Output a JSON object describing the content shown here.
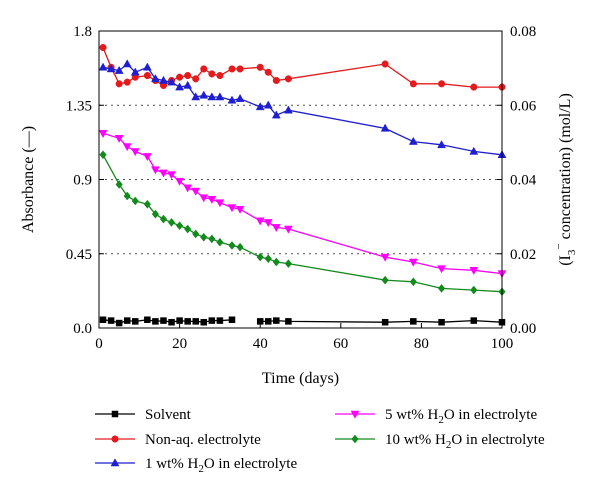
{
  "chart_data": {
    "type": "line",
    "xlabel": "Time (days)",
    "ylabel": "Absorbance (—)",
    "ylabel_right_parts": [
      "(I",
      "3",
      "−",
      " concentration) (mol/L)"
    ],
    "xlim": [
      0,
      100
    ],
    "ylim": [
      0,
      1.8
    ],
    "ylim_right": [
      0,
      0.08
    ],
    "x_ticks": [
      "0",
      "20",
      "40",
      "60",
      "80",
      "100"
    ],
    "y_ticks": [
      "0.0",
      "0.45",
      "0.9",
      "1.35",
      "1.8"
    ],
    "y_ticks_right": [
      "0.00",
      "0.02",
      "0.04",
      "0.06",
      "0.08"
    ],
    "grid": "horizontal dotted",
    "series": [
      {
        "name": "Solvent",
        "legend_parts": [
          "Solvent"
        ],
        "color": "#000000",
        "marker": "square",
        "segments": [
          [
            [
              1,
              0.05
            ],
            [
              3,
              0.045
            ],
            [
              5,
              0.03
            ],
            [
              7,
              0.045
            ],
            [
              9,
              0.04
            ],
            [
              12,
              0.05
            ],
            [
              14,
              0.04
            ],
            [
              16,
              0.045
            ],
            [
              18,
              0.035
            ],
            [
              20,
              0.045
            ],
            [
              22,
              0.04
            ],
            [
              24,
              0.04
            ],
            [
              26,
              0.035
            ],
            [
              28,
              0.045
            ],
            [
              30,
              0.045
            ],
            [
              33,
              0.05
            ]
          ],
          [
            [
              40,
              0.04
            ],
            [
              42,
              0.04
            ],
            [
              44,
              0.045
            ],
            [
              47,
              0.04
            ],
            [
              71,
              0.035
            ],
            [
              78,
              0.04
            ],
            [
              85,
              0.035
            ],
            [
              93,
              0.045
            ],
            [
              100,
              0.035
            ]
          ]
        ]
      },
      {
        "name": "Non-aq. electrolyte",
        "legend_parts": [
          "Non-aq. electrolyte"
        ],
        "color": "#e41a1c",
        "marker": "circle",
        "segments": [
          [
            [
              1,
              1.7
            ],
            [
              3,
              1.58
            ],
            [
              5,
              1.48
            ],
            [
              7,
              1.49
            ],
            [
              9,
              1.52
            ],
            [
              12,
              1.53
            ],
            [
              14,
              1.5
            ],
            [
              16,
              1.47
            ],
            [
              18,
              1.5
            ],
            [
              20,
              1.52
            ],
            [
              22,
              1.53
            ],
            [
              24,
              1.51
            ],
            [
              26,
              1.57
            ],
            [
              28,
              1.54
            ],
            [
              30,
              1.53
            ],
            [
              33,
              1.57
            ],
            [
              35,
              1.57
            ],
            [
              40,
              1.58
            ],
            [
              42,
              1.55
            ],
            [
              44,
              1.5
            ],
            [
              47,
              1.51
            ],
            [
              71,
              1.6
            ],
            [
              78,
              1.48
            ],
            [
              85,
              1.48
            ],
            [
              93,
              1.46
            ],
            [
              100,
              1.46
            ]
          ]
        ]
      },
      {
        "name": "1 wt% H2O in electrolyte",
        "legend_parts": [
          "1 wt% H",
          "2",
          "O in electrolyte"
        ],
        "color": "#1f1fd0",
        "marker": "triangle-up",
        "segments": [
          [
            [
              1,
              1.58
            ],
            [
              3,
              1.57
            ],
            [
              5,
              1.56
            ],
            [
              7,
              1.6
            ],
            [
              9,
              1.55
            ],
            [
              12,
              1.58
            ],
            [
              14,
              1.51
            ],
            [
              16,
              1.5
            ],
            [
              18,
              1.49
            ],
            [
              20,
              1.46
            ],
            [
              22,
              1.47
            ],
            [
              24,
              1.4
            ],
            [
              26,
              1.41
            ],
            [
              28,
              1.4
            ],
            [
              30,
              1.4
            ],
            [
              33,
              1.38
            ],
            [
              35,
              1.39
            ],
            [
              40,
              1.34
            ],
            [
              42,
              1.35
            ],
            [
              44,
              1.29
            ],
            [
              47,
              1.32
            ],
            [
              71,
              1.21
            ],
            [
              78,
              1.13
            ],
            [
              85,
              1.11
            ],
            [
              93,
              1.07
            ],
            [
              100,
              1.05
            ]
          ]
        ]
      },
      {
        "name": "5 wt% H2O in electrolyte",
        "legend_parts": [
          "5 wt% H",
          "2",
          "O in electrolyte"
        ],
        "color": "#ff00ff",
        "marker": "triangle-down",
        "segments": [
          [
            [
              1,
              1.18
            ],
            [
              5,
              1.15
            ],
            [
              7,
              1.1
            ],
            [
              9,
              1.07
            ],
            [
              12,
              1.04
            ],
            [
              14,
              0.96
            ],
            [
              16,
              0.94
            ],
            [
              18,
              0.93
            ],
            [
              20,
              0.89
            ],
            [
              22,
              0.85
            ],
            [
              24,
              0.83
            ],
            [
              26,
              0.79
            ],
            [
              28,
              0.78
            ],
            [
              30,
              0.76
            ],
            [
              33,
              0.73
            ],
            [
              35,
              0.72
            ],
            [
              40,
              0.65
            ],
            [
              42,
              0.64
            ],
            [
              44,
              0.61
            ],
            [
              47,
              0.6
            ],
            [
              71,
              0.43
            ],
            [
              78,
              0.4
            ],
            [
              85,
              0.36
            ],
            [
              93,
              0.35
            ],
            [
              100,
              0.33
            ]
          ]
        ]
      },
      {
        "name": "10 wt% H2O in electrolyte",
        "legend_parts": [
          "10 wt% H",
          "2",
          "O in electrolyte"
        ],
        "color": "#138a1c",
        "marker": "diamond",
        "segments": [
          [
            [
              1,
              1.05
            ],
            [
              5,
              0.87
            ],
            [
              7,
              0.8
            ],
            [
              9,
              0.77
            ],
            [
              12,
              0.75
            ],
            [
              14,
              0.69
            ],
            [
              16,
              0.66
            ],
            [
              18,
              0.64
            ],
            [
              20,
              0.62
            ],
            [
              22,
              0.6
            ],
            [
              24,
              0.57
            ],
            [
              26,
              0.55
            ],
            [
              28,
              0.54
            ],
            [
              30,
              0.52
            ],
            [
              33,
              0.5
            ],
            [
              35,
              0.49
            ],
            [
              40,
              0.43
            ],
            [
              42,
              0.42
            ],
            [
              44,
              0.4
            ],
            [
              47,
              0.39
            ],
            [
              71,
              0.29
            ],
            [
              78,
              0.28
            ],
            [
              85,
              0.24
            ],
            [
              93,
              0.23
            ],
            [
              100,
              0.22
            ]
          ]
        ]
      }
    ]
  }
}
